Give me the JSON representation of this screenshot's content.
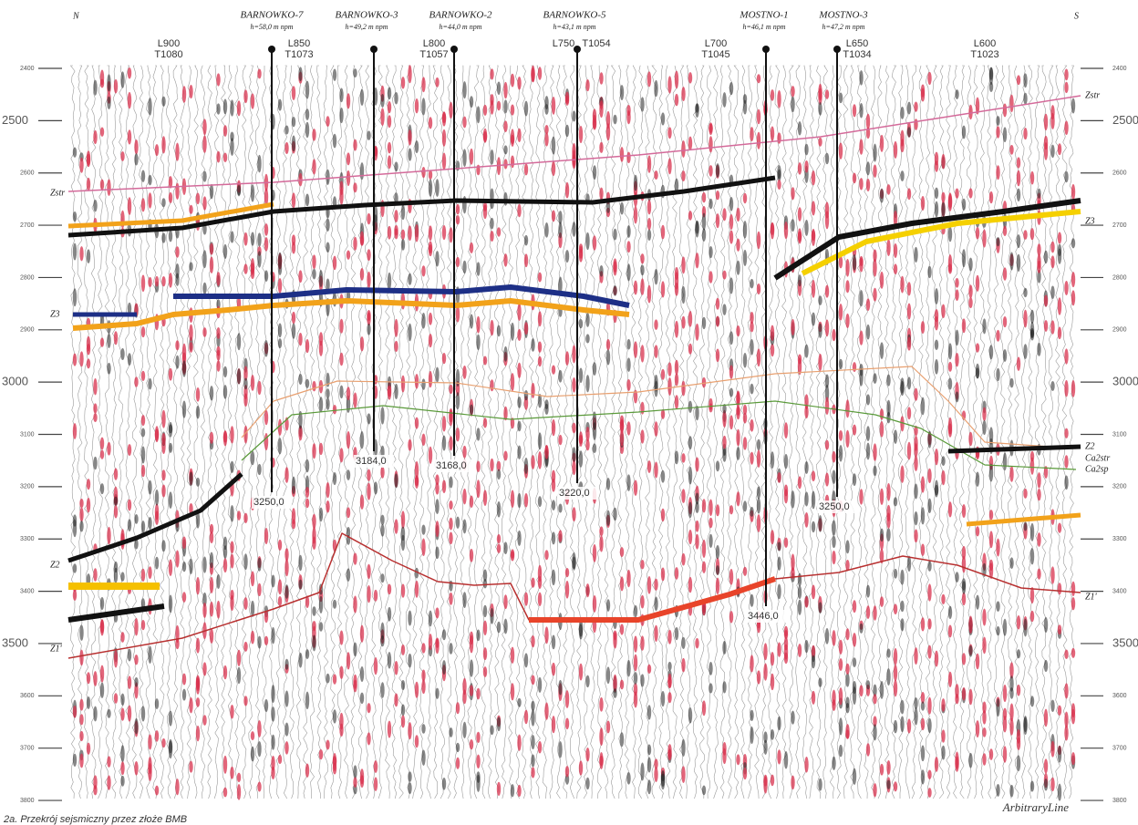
{
  "header": {
    "north": "N",
    "south": "S"
  },
  "wells": [
    {
      "name": "BARNOWKO-7",
      "elevation": "h=58,0 m npm",
      "depth": "3250,0"
    },
    {
      "name": "BARNOWKO-3",
      "elevation": "h=49,2 m npm",
      "depth": "3184,0"
    },
    {
      "name": "BARNOWKO-2",
      "elevation": "h=44,0 m npm",
      "depth": "3168,0"
    },
    {
      "name": "BARNOWKO-5",
      "elevation": "h=43,1 m npm",
      "depth": "3220,0"
    },
    {
      "name": "MOSTNO-1",
      "elevation": "h=46,1 m npm",
      "depth": "3446,0"
    },
    {
      "name": "MOSTNO-3",
      "elevation": "h=47,2 m npm",
      "depth": "3250,0"
    }
  ],
  "lines": [
    {
      "line": "L900",
      "trace": "T1080"
    },
    {
      "line": "L850",
      "trace": "T1073"
    },
    {
      "line": "L800",
      "trace": "T1057"
    },
    {
      "line": "L750",
      "trace": "T1054"
    },
    {
      "line": "L700",
      "trace": "T1045"
    },
    {
      "line": "L650",
      "trace": "T1034"
    },
    {
      "line": "L600",
      "trace": "T1023"
    }
  ],
  "depth_axis": [
    2400,
    2500,
    2600,
    2700,
    2800,
    2900,
    3000,
    3100,
    3200,
    3300,
    3400,
    3500,
    3600,
    3700,
    3800
  ],
  "horizons": {
    "left": [
      "Zstr",
      "Z3",
      "Z2",
      "Z1'"
    ],
    "right": [
      "Zstr",
      "Z3",
      "Z2",
      "Ca2str",
      "Ca2sp",
      "Z1'"
    ]
  },
  "caption": "2a. Przekrój sejsmiczny przez złoże BMB",
  "footer": "ArbitraryLine"
}
